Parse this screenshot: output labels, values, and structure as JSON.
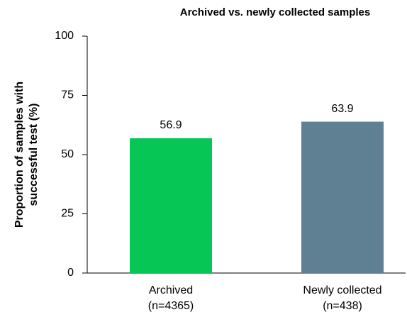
{
  "chart_data": {
    "type": "bar",
    "title": "Archived vs. newly collected samples",
    "ylabel": [
      "Proportion of samples with",
      "successful test  (%)"
    ],
    "categories": [
      [
        "Archived",
        "(n=4365)"
      ],
      [
        "Newly collected",
        "(n=438)"
      ]
    ],
    "values": [
      56.9,
      63.9
    ],
    "colors": [
      "#06c655",
      "#5f7f92"
    ],
    "ylim": [
      0,
      100
    ],
    "yticks": [
      0,
      25,
      50,
      75,
      100
    ],
    "grid": false
  }
}
